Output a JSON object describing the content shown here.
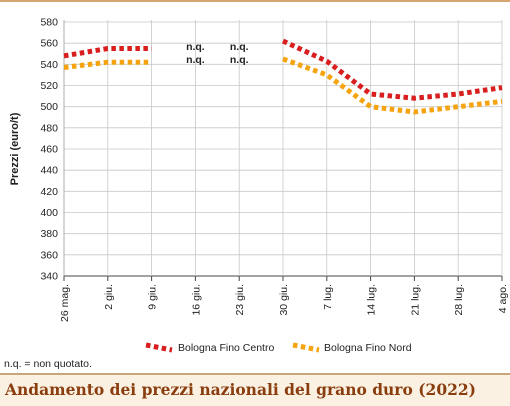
{
  "chart_data": {
    "type": "line",
    "title": "Andamento dei prezzi nazionali del grano duro (2022)",
    "ylabel": "Prezzi (euro/t)",
    "xlabel": "",
    "ylim": [
      340,
      580
    ],
    "yticks": [
      340,
      360,
      380,
      400,
      420,
      440,
      460,
      480,
      500,
      520,
      540,
      560,
      580
    ],
    "categories": [
      "26 mag.",
      "2 giu.",
      "9 giu.",
      "16 giu.",
      "23 giu.",
      "30 giu.",
      "7 lug.",
      "14 lug.",
      "21 lug.",
      "28 lug.",
      "4 ago."
    ],
    "grid": "horizontal",
    "legend_position": "bottom",
    "series": [
      {
        "name": "Bologna Fino Centro",
        "color": "#d81e1e",
        "values": [
          548,
          555,
          555,
          null,
          null,
          562,
          543,
          512,
          508,
          512,
          518
        ]
      },
      {
        "name": "Bologna Fino Nord",
        "color": "#f5a40f",
        "values": [
          537,
          542,
          542,
          null,
          null,
          545,
          530,
          500,
          495,
          500,
          505
        ]
      }
    ],
    "annotations": [
      {
        "category": "16 giu.",
        "lines": [
          "n.q.",
          "n.q."
        ]
      },
      {
        "category": "23 giu.",
        "lines": [
          "n.q.",
          "n.q."
        ]
      }
    ]
  },
  "footnote": "n.q. = non quotato.",
  "colors": {
    "title": "#8a3d0e",
    "title_bg": "#fbf1e2",
    "grid": "#c8c8c8"
  }
}
